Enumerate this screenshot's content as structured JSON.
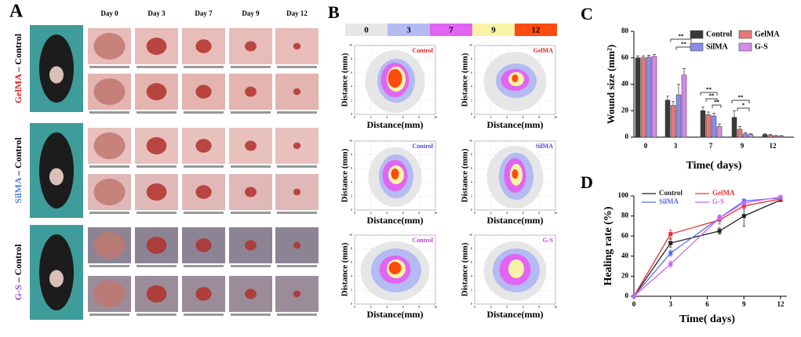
{
  "panels": {
    "A": {
      "label": "A",
      "days": [
        "Day 0",
        "Day 3",
        "Day 7",
        "Day 9",
        "Day 12"
      ],
      "rows": [
        {
          "name": "GelMA",
          "rest": " – Control",
          "color": "#e02020"
        },
        {
          "name": "SilMA",
          "rest": " – Control",
          "color": "#4a7fe0"
        },
        {
          "name": "G-S",
          "rest": " – Control",
          "color": "#a040d0"
        }
      ]
    },
    "B": {
      "label": "B",
      "levels": [
        0,
        3,
        7,
        9,
        12
      ],
      "level_colors": [
        "#e6e6e6",
        "#b3bbf2",
        "#e264f2",
        "#f8f3a6",
        "#ff4a10"
      ],
      "plots": [
        {
          "title": "Control",
          "color": "#e02020"
        },
        {
          "title": "GelMA",
          "color": "#e02020"
        },
        {
          "title": "Control",
          "color": "#4a4ae0"
        },
        {
          "title": "SilMA",
          "color": "#4a4ae0"
        },
        {
          "title": "Control",
          "color": "#c040e0"
        },
        {
          "title": "G-S",
          "color": "#c040e0"
        }
      ],
      "ylabel": "Distance (mm)",
      "xlabel": "Distance(mm)",
      "ticks": [
        0,
        2,
        4,
        6,
        8,
        10
      ]
    },
    "C": {
      "label": "C"
    },
    "D": {
      "label": "D"
    }
  },
  "chart_data": [
    {
      "type": "bar",
      "ylabel": "Wound size (mm²)",
      "xlabel": "Time( days)",
      "categories": [
        "0",
        "3",
        "7",
        "9",
        "12"
      ],
      "ylim": [
        0,
        80
      ],
      "yticks": [
        0,
        20,
        40,
        60,
        80
      ],
      "series": [
        {
          "name": "Control",
          "color": "#3a3a3a",
          "values": [
            60,
            28,
            20,
            15,
            2
          ],
          "errors": [
            1.5,
            3,
            3,
            5,
            0.5
          ]
        },
        {
          "name": "GelMA",
          "color": "#e87878",
          "values": [
            60,
            24,
            17,
            6,
            1.5
          ],
          "errors": [
            1.5,
            3,
            2,
            2,
            0.5
          ]
        },
        {
          "name": "SilMA",
          "color": "#8c8ce8",
          "values": [
            60.5,
            32,
            16,
            2.5,
            1
          ],
          "errors": [
            1.5,
            8,
            2,
            1,
            0.3
          ]
        },
        {
          "name": "G-S",
          "color": "#d58ae8",
          "values": [
            61,
            47,
            8,
            2,
            0.8
          ],
          "errors": [
            1.5,
            5,
            2,
            0.5,
            0.3
          ]
        }
      ],
      "annotations": [
        "**",
        "**",
        "**",
        "**",
        "**",
        "**",
        "*"
      ]
    },
    {
      "type": "line",
      "ylabel": "Healing rate (%)",
      "xlabel": "Time( days)",
      "x": [
        0,
        3,
        7,
        9,
        12
      ],
      "xlim": [
        0,
        12
      ],
      "xticks": [
        0,
        3,
        6,
        9,
        12
      ],
      "ylim": [
        0,
        100
      ],
      "yticks": [
        0,
        20,
        40,
        60,
        80,
        100
      ],
      "series": [
        {
          "name": "Control",
          "color": "#222222",
          "values": [
            0,
            53,
            65,
            80,
            96
          ],
          "errors": [
            0,
            4,
            3,
            10,
            1
          ]
        },
        {
          "name": "GelMA",
          "color": "#e83030",
          "values": [
            0,
            62,
            76,
            90,
            97
          ],
          "errors": [
            0,
            4,
            4,
            3,
            1
          ]
        },
        {
          "name": "SilMA",
          "color": "#5a6af0",
          "values": [
            0,
            43,
            78,
            95,
            98
          ],
          "errors": [
            0,
            3,
            3,
            2,
            1
          ]
        },
        {
          "name": "G-S",
          "color": "#c868f0",
          "values": [
            0,
            32,
            78,
            93,
            99
          ],
          "errors": [
            0,
            3,
            3,
            2,
            1
          ]
        }
      ]
    }
  ]
}
